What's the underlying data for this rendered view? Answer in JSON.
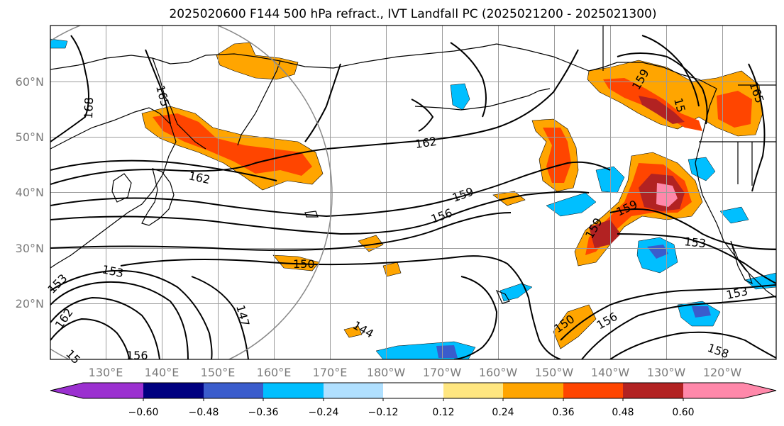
{
  "title": "2025020600 F144 500 hPa refract., IVT Landfall PC (2025021200 - 2025021300)",
  "lat_labels": [
    "60°N",
    "50°N",
    "40°N",
    "30°N",
    "20°N"
  ],
  "lon_labels": [
    "130°E",
    "140°E",
    "150°E",
    "160°E",
    "170°E",
    "180°W",
    "170°W",
    "160°W",
    "150°W",
    "140°W",
    "130°W",
    "120°W"
  ],
  "colorbar": {
    "ticks": [
      "−0.60",
      "−0.48",
      "−0.36",
      "−0.24",
      "−0.12",
      "0.12",
      "0.24",
      "0.36",
      "0.48",
      "0.60"
    ],
    "colors": [
      "#9b30d0",
      "#000080",
      "#3a5ccc",
      "#00bfff",
      "#b0e0ff",
      "#ffffff",
      "#ffe680",
      "#ffa500",
      "#ff4500",
      "#b22222",
      "#ff88aa"
    ]
  },
  "contour_labels": [
    "165",
    "168",
    "162",
    "162",
    "159",
    "156",
    "159",
    "159",
    "153",
    "150",
    "153",
    "150",
    "147",
    "144",
    "156",
    "153",
    "153",
    "162",
    "156",
    "158",
    "159",
    "15",
    "165",
    "15"
  ]
}
